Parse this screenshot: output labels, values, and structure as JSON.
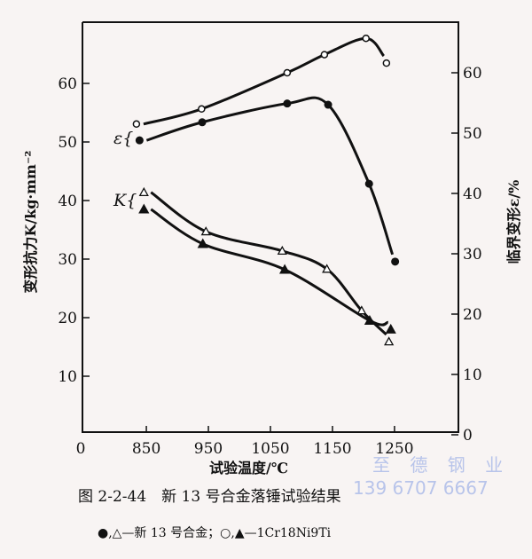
{
  "chart_data": {
    "type": "line",
    "title": "",
    "xlabel": "试验温度/℃",
    "ylabel_left": "变形抗力K/kg·mm⁻²",
    "ylabel_right": "临界变形ε/%",
    "x_ticks": [
      "0",
      "850",
      "950",
      "1050",
      "1150",
      "1250"
    ],
    "x_tick_values": [
      850,
      950,
      1050,
      1150,
      1250
    ],
    "y_left_ticks": [
      10,
      20,
      30,
      40,
      50,
      60
    ],
    "y_right_ticks": [
      0,
      10,
      20,
      30,
      40,
      50,
      60
    ],
    "xlim": [
      747,
      1353
    ],
    "ylim_left": [
      0,
      70
    ],
    "ylim_right": [
      0,
      68
    ],
    "grid": false,
    "annotations": {
      "epsilon": "ε{",
      "k": "K{"
    },
    "series": [
      {
        "group": "ε",
        "axis": "right",
        "marker": "open-circle",
        "x": [
          834,
          939,
          1077,
          1137,
          1204,
          1237
        ],
        "y": [
          51.5,
          54,
          60,
          63,
          65.7,
          61.6
        ]
      },
      {
        "group": "ε",
        "axis": "right",
        "marker": "filled-circle",
        "x": [
          839,
          940,
          1077,
          1143,
          1209,
          1251
        ],
        "y": [
          48.8,
          51.8,
          54.9,
          54.7,
          41.6,
          28.7
        ]
      },
      {
        "group": "K",
        "axis": "left",
        "marker": "open-triangle",
        "x": [
          846,
          946,
          1069,
          1141,
          1197,
          1241
        ],
        "y": [
          41.4,
          34.7,
          31.4,
          28.3,
          21.2,
          15.9
        ]
      },
      {
        "group": "K",
        "axis": "left",
        "marker": "filled-triangle",
        "x": [
          846,
          941,
          1073,
          1210,
          1244
        ],
        "y": [
          38.5,
          32.6,
          28.2,
          19.5,
          18
        ]
      }
    ]
  },
  "caption": {
    "title": "图 2-2-44　新 13 号合金落锤试验结果",
    "legend": "●,△—新 13 号合金；○,▲—1Cr18Ni9Ti"
  },
  "watermark": {
    "name": "至 德 钢 业",
    "phone": "139 6707 6667"
  }
}
